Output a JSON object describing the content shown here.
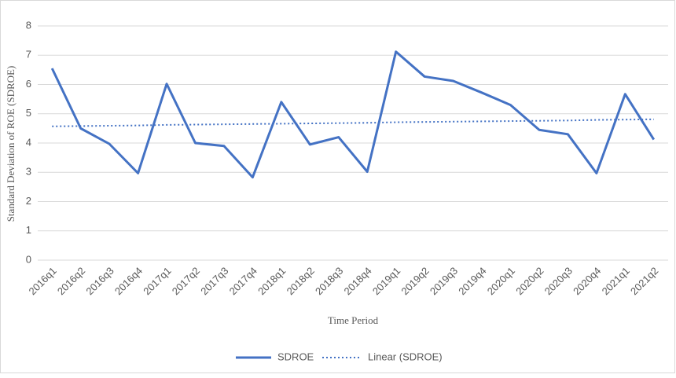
{
  "chart_data": {
    "type": "line",
    "x_label": "Time Period",
    "y_label": "Standard Deviation of ROE (SDROE)",
    "categories": [
      "2016q1",
      "2016q2",
      "2016q3",
      "2016q4",
      "2017q1",
      "2017q2",
      "2017q3",
      "2017q4",
      "2018q1",
      "2018q2",
      "2018q3",
      "2018q4",
      "2019q1",
      "2019q2",
      "2019q3",
      "2019q4",
      "2020q1",
      "2020q2",
      "2020q3",
      "2020q4",
      "2021q1",
      "2021q2"
    ],
    "series": [
      {
        "name": "SDROE",
        "color": "#4472c4",
        "style": "solid",
        "values": [
          6.55,
          4.5,
          3.97,
          2.97,
          6.02,
          4.0,
          3.9,
          2.83,
          5.4,
          3.95,
          4.2,
          3.02,
          7.12,
          6.27,
          6.12,
          5.72,
          5.3,
          4.45,
          4.3,
          2.97,
          5.67,
          4.12
        ]
      },
      {
        "name": "Linear (SDROE)",
        "color": "#4472c4",
        "style": "dotted",
        "values": [
          4.57,
          4.58,
          4.59,
          4.6,
          4.62,
          4.63,
          4.64,
          4.65,
          4.66,
          4.67,
          4.68,
          4.69,
          4.71,
          4.72,
          4.73,
          4.74,
          4.75,
          4.76,
          4.77,
          4.79,
          4.8,
          4.81
        ]
      }
    ],
    "ylim": [
      0,
      8
    ],
    "yticks": [
      0,
      1,
      2,
      3,
      4,
      5,
      6,
      7,
      8
    ],
    "grid": true,
    "legend": "bottom"
  }
}
